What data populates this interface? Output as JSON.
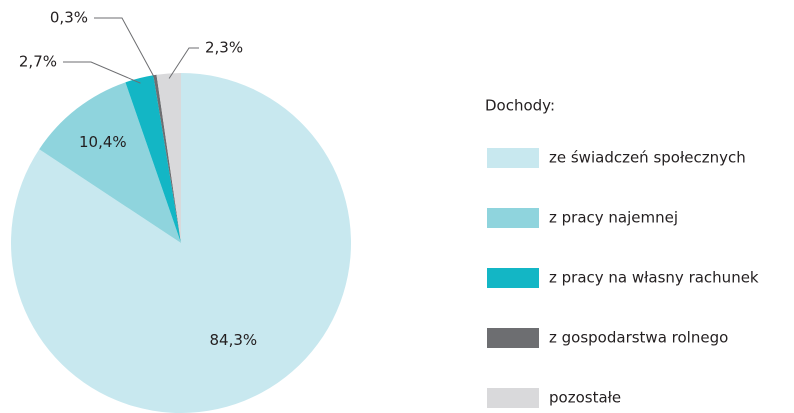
{
  "chart_data": {
    "type": "pie",
    "legend_title": "Dochody:",
    "categories": [
      "ze świadczeń społecznych",
      "z pracy najemnej",
      "z pracy na własny rachunek",
      "z gospodarstwa rolnego",
      "pozostałe"
    ],
    "values": [
      84.3,
      10.4,
      2.7,
      0.3,
      2.3
    ],
    "value_labels": [
      "84,3%",
      "10,4%",
      "2,7%",
      "0,3%",
      "2,3%"
    ],
    "colors": [
      "#c8e8ef",
      "#8fd4dd",
      "#13b6c5",
      "#6d6e71",
      "#d9d9db"
    ],
    "legend": "right"
  }
}
